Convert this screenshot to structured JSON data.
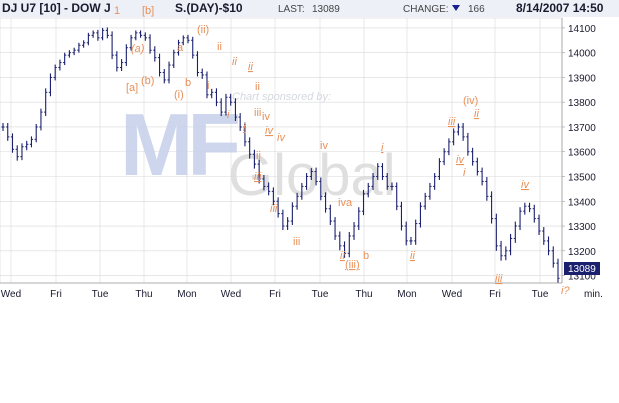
{
  "header": {
    "title": "DJ U7 [10] - DOW J",
    "title_tail": "S.(DAY)-$10",
    "last_label": "LAST:",
    "last_value": "13089",
    "change_label": "CHANGE:",
    "change_value": "166",
    "datetime": "8/14/2007 14:50"
  },
  "watermark": {
    "sponsor": "Chart sponsored by:",
    "brand": "MF Global"
  },
  "x_axis": {
    "labels": [
      "Wed",
      "Fri",
      "Tue",
      "Thu",
      "Mon",
      "Wed",
      "Fri",
      "Tue",
      "Thu",
      "Mon",
      "Wed",
      "Fri",
      "Tue"
    ],
    "unit": "min."
  },
  "y_axis": {
    "labels": [
      "14100",
      "14000",
      "13900",
      "13800",
      "13700",
      "13600",
      "13500",
      "13400",
      "13300",
      "13200",
      "13100"
    ],
    "last_tag": "13089"
  },
  "annotations": [
    {
      "id": "a-1",
      "text": "1"
    },
    {
      "id": "a-b-bracket",
      "text": "[b]"
    },
    {
      "id": "a-a-paren",
      "text": "(a)"
    },
    {
      "id": "a-a-bracket",
      "text": "[a]"
    },
    {
      "id": "a-b-paren",
      "text": "(b)"
    },
    {
      "id": "a-ii-paren",
      "text": "(ii)"
    },
    {
      "id": "a-a",
      "text": "a"
    },
    {
      "id": "a-b",
      "text": "b"
    },
    {
      "id": "a-i-paren",
      "text": "(i)"
    },
    {
      "id": "a-ii-1",
      "text": "ii"
    },
    {
      "id": "a-i-1",
      "text": "i"
    },
    {
      "id": "a-ii-2",
      "text": "ii"
    },
    {
      "id": "a-ii-3",
      "text": "ii"
    },
    {
      "id": "a-i-2",
      "text": "i"
    },
    {
      "id": "a-ii-4",
      "text": "ii"
    },
    {
      "id": "a-i-3",
      "text": "i"
    },
    {
      "id": "a-iii-1",
      "text": "iii"
    },
    {
      "id": "a-iv-1",
      "text": "iv"
    },
    {
      "id": "a-iv-2",
      "text": "iv"
    },
    {
      "id": "a-ii-5",
      "text": "ii"
    },
    {
      "id": "a-iii-2",
      "text": "iii"
    },
    {
      "id": "a-iii-3",
      "text": "iii"
    },
    {
      "id": "a-iii-4",
      "text": "iii"
    },
    {
      "id": "a-iv-3",
      "text": "iv"
    },
    {
      "id": "a-iva",
      "text": "iva"
    },
    {
      "id": "a-ii-6",
      "text": "ii"
    },
    {
      "id": "a-iii-paren",
      "text": "(iii)"
    },
    {
      "id": "a-b-2",
      "text": "b"
    },
    {
      "id": "a-i-4",
      "text": "i"
    },
    {
      "id": "a-ii-7",
      "text": "ii"
    },
    {
      "id": "a-iii-5",
      "text": "iii"
    },
    {
      "id": "a-iv-paren",
      "text": "(iv)"
    },
    {
      "id": "a-ii-8",
      "text": "ii"
    },
    {
      "id": "a-iv-4",
      "text": "iv"
    },
    {
      "id": "a-i-5",
      "text": "i"
    },
    {
      "id": "a-iii-6",
      "text": "iii"
    },
    {
      "id": "a-iv-5",
      "text": "iv"
    },
    {
      "id": "a-i-q",
      "text": "i?"
    }
  ],
  "colors": {
    "bars": "#1a1f6e",
    "annotation": "#e8915a",
    "grid": "#d9d9d9",
    "header_bg": "#eef0f8",
    "down_arrow": "#1a1f8e",
    "last_tag_bg": "#1a1f6e",
    "watermark_blue": "#c8d2ea",
    "watermark_gray": "#dcdcdc"
  },
  "chart_data": {
    "type": "bar",
    "ylim": [
      13070,
      14140
    ],
    "close": [
      13700,
      13660,
      13610,
      13580,
      13620,
      13630,
      13650,
      13700,
      13760,
      13840,
      13900,
      13940,
      13960,
      13990,
      14000,
      14010,
      14030,
      14040,
      14070,
      14080,
      14060,
      14090,
      14070,
      13990,
      13940,
      13960,
      14020,
      14060,
      14080,
      14070,
      14060,
      14010,
      13980,
      13920,
      13890,
      13950,
      14000,
      14040,
      14060,
      14050,
      13990,
      13920,
      13910,
      13830,
      13840,
      13800,
      13760,
      13820,
      13800,
      13740,
      13700,
      13640,
      13590,
      13550,
      13490,
      13460,
      13440,
      13400,
      13350,
      13300,
      13320,
      13380,
      13420,
      13460,
      13500,
      13520,
      13480,
      13420,
      13370,
      13320,
      13260,
      13220,
      13190,
      13260,
      13300,
      13360,
      13430,
      13460,
      13500,
      13540,
      13500,
      13460,
      13460,
      13380,
      13300,
      13240,
      13240,
      13310,
      13380,
      13420,
      13460,
      13500,
      13560,
      13600,
      13640,
      13680,
      13700,
      13660,
      13600,
      13560,
      13520,
      13480,
      13420,
      13330,
      13220,
      13180,
      13200,
      13250,
      13300,
      13360,
      13380,
      13370,
      13330,
      13280,
      13240,
      13200,
      13150,
      13089
    ],
    "range": [
      40,
      40,
      35,
      40,
      35,
      35,
      30,
      30,
      35,
      40,
      40,
      30,
      30,
      25,
      25,
      25,
      25,
      25,
      25,
      25,
      30,
      25,
      30,
      40,
      40,
      35,
      35,
      30,
      25,
      25,
      30,
      35,
      40,
      40,
      35,
      35,
      30,
      30,
      25,
      30,
      35,
      40,
      40,
      35,
      35,
      40,
      40,
      35,
      35,
      40,
      40,
      45,
      45,
      45,
      45,
      40,
      40,
      40,
      40,
      40,
      40,
      40,
      35,
      35,
      35,
      35,
      40,
      40,
      40,
      40,
      40,
      45,
      45,
      40,
      40,
      40,
      40,
      35,
      35,
      35,
      35,
      35,
      40,
      40,
      45,
      45,
      40,
      40,
      40,
      35,
      35,
      35,
      35,
      35,
      35,
      35,
      35,
      40,
      40,
      40,
      40,
      40,
      45,
      50,
      50,
      50,
      45,
      45,
      45,
      40,
      35,
      35,
      40,
      40,
      40,
      45,
      45,
      45
    ]
  }
}
